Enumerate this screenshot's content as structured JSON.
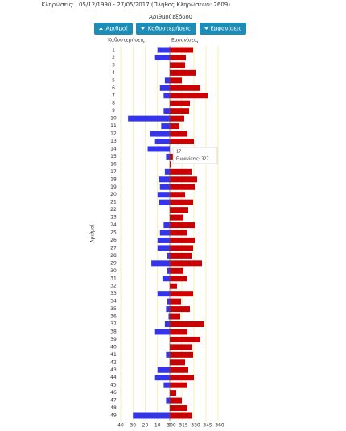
{
  "header": {
    "label": "Κληρώσεις:",
    "range": "05/12/1990 - 27/05/2017  (Πλήθος Κληρώσεων: 2609)"
  },
  "buttons": [
    "Αριθμοί",
    "Καθυστερήσεις",
    "Εμφανίσεις"
  ],
  "chart_data": {
    "type": "butterfly",
    "title": "Αριθμοί εξόδου",
    "ylabel": "Αριθμοί",
    "categories": [
      "1",
      "2",
      "3",
      "4",
      "5",
      "6",
      "7",
      "8",
      "9",
      "10",
      "11",
      "12",
      "13",
      "14",
      "15",
      "16",
      "17",
      "18",
      "19",
      "20",
      "21",
      "22",
      "23",
      "24",
      "25",
      "26",
      "27",
      "28",
      "29",
      "30",
      "31",
      "32",
      "33",
      "34",
      "35",
      "36",
      "37",
      "38",
      "39",
      "40",
      "41",
      "42",
      "43",
      "44",
      "45",
      "46",
      "47",
      "48",
      "49"
    ],
    "series": [
      {
        "name": "Καθυστερήσεις",
        "color": "#3434ea",
        "side": "left",
        "values": [
          10,
          12,
          0,
          0,
          4,
          8,
          5,
          0,
          5,
          34,
          7,
          16,
          12,
          18,
          3,
          0,
          4,
          9,
          8,
          10,
          9,
          0,
          0,
          5,
          8,
          10,
          10,
          2,
          15,
          2,
          6,
          0,
          10,
          2,
          3,
          1,
          4,
          12,
          0,
          0,
          3,
          0,
          10,
          12,
          5,
          0,
          3,
          0,
          30
        ]
      },
      {
        "name": "Εμφανίσεις",
        "color": "#cc0000",
        "side": "right",
        "values": [
          329,
          320,
          319,
          332,
          315,
          338,
          347,
          325,
          324,
          318,
          312,
          322,
          330,
          300,
          304,
          302,
          327,
          334,
          331,
          319,
          329,
          323,
          317,
          331,
          321,
          331,
          329,
          327,
          340,
          317,
          321,
          309,
          329,
          314,
          325,
          313,
          343,
          322,
          338,
          328,
          329,
          319,
          323,
          330,
          321,
          308,
          315,
          322,
          328
        ]
      }
    ],
    "xlim": [
      0,
      40
    ],
    "xticks": [
      40,
      30,
      20,
      10,
      0
    ],
    "x2lim": [
      300,
      360
    ],
    "x2ticks": [
      300,
      315,
      330,
      345,
      360
    ],
    "grid": true,
    "tooltip": {
      "title": "17",
      "text": "Εμφανίσεις: 327"
    }
  }
}
